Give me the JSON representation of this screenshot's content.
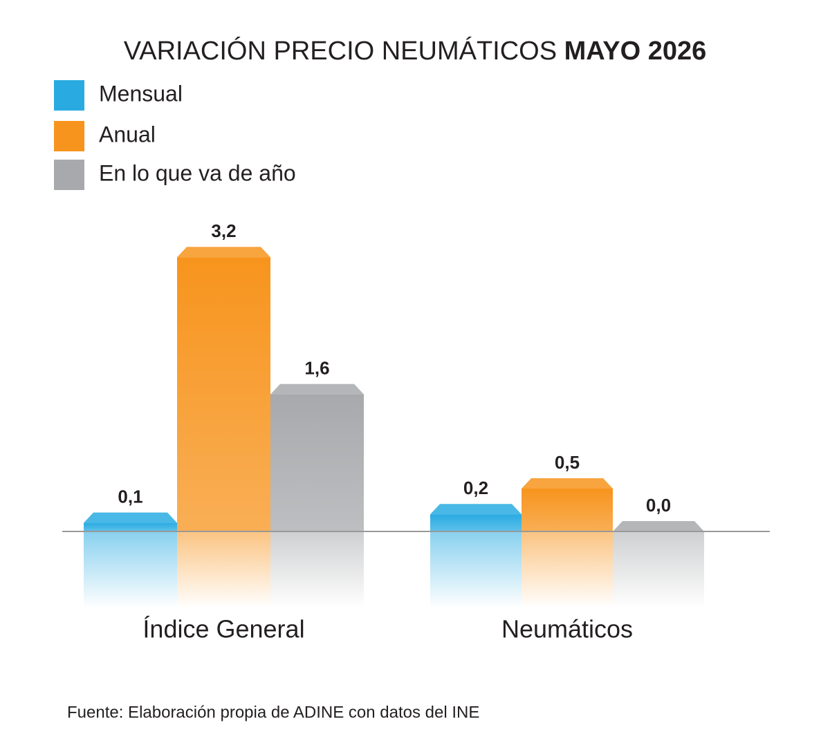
{
  "chart_data": {
    "type": "bar",
    "title": "VARIACIÓN PRECIO NEUMÁTICOS",
    "title_emphasis": "MAYO 2026",
    "categories": [
      "Índice General",
      "Neumáticos"
    ],
    "series": [
      {
        "name": "Mensual",
        "color": "#29abe2",
        "values": [
          0.1,
          0.2
        ],
        "value_labels": [
          "0,1",
          "0,2"
        ]
      },
      {
        "name": "Anual",
        "color": "#f7941d",
        "values": [
          3.2,
          0.5
        ],
        "value_labels": [
          "3,2",
          "0,5"
        ]
      },
      {
        "name": "En lo que va de año",
        "color": "#a7a9ac",
        "values": [
          1.6,
          0.0
        ],
        "value_labels": [
          "1,6",
          "0,0"
        ]
      }
    ],
    "source": "Fuente: Elaboración propia de ADINE con datos del INE"
  }
}
